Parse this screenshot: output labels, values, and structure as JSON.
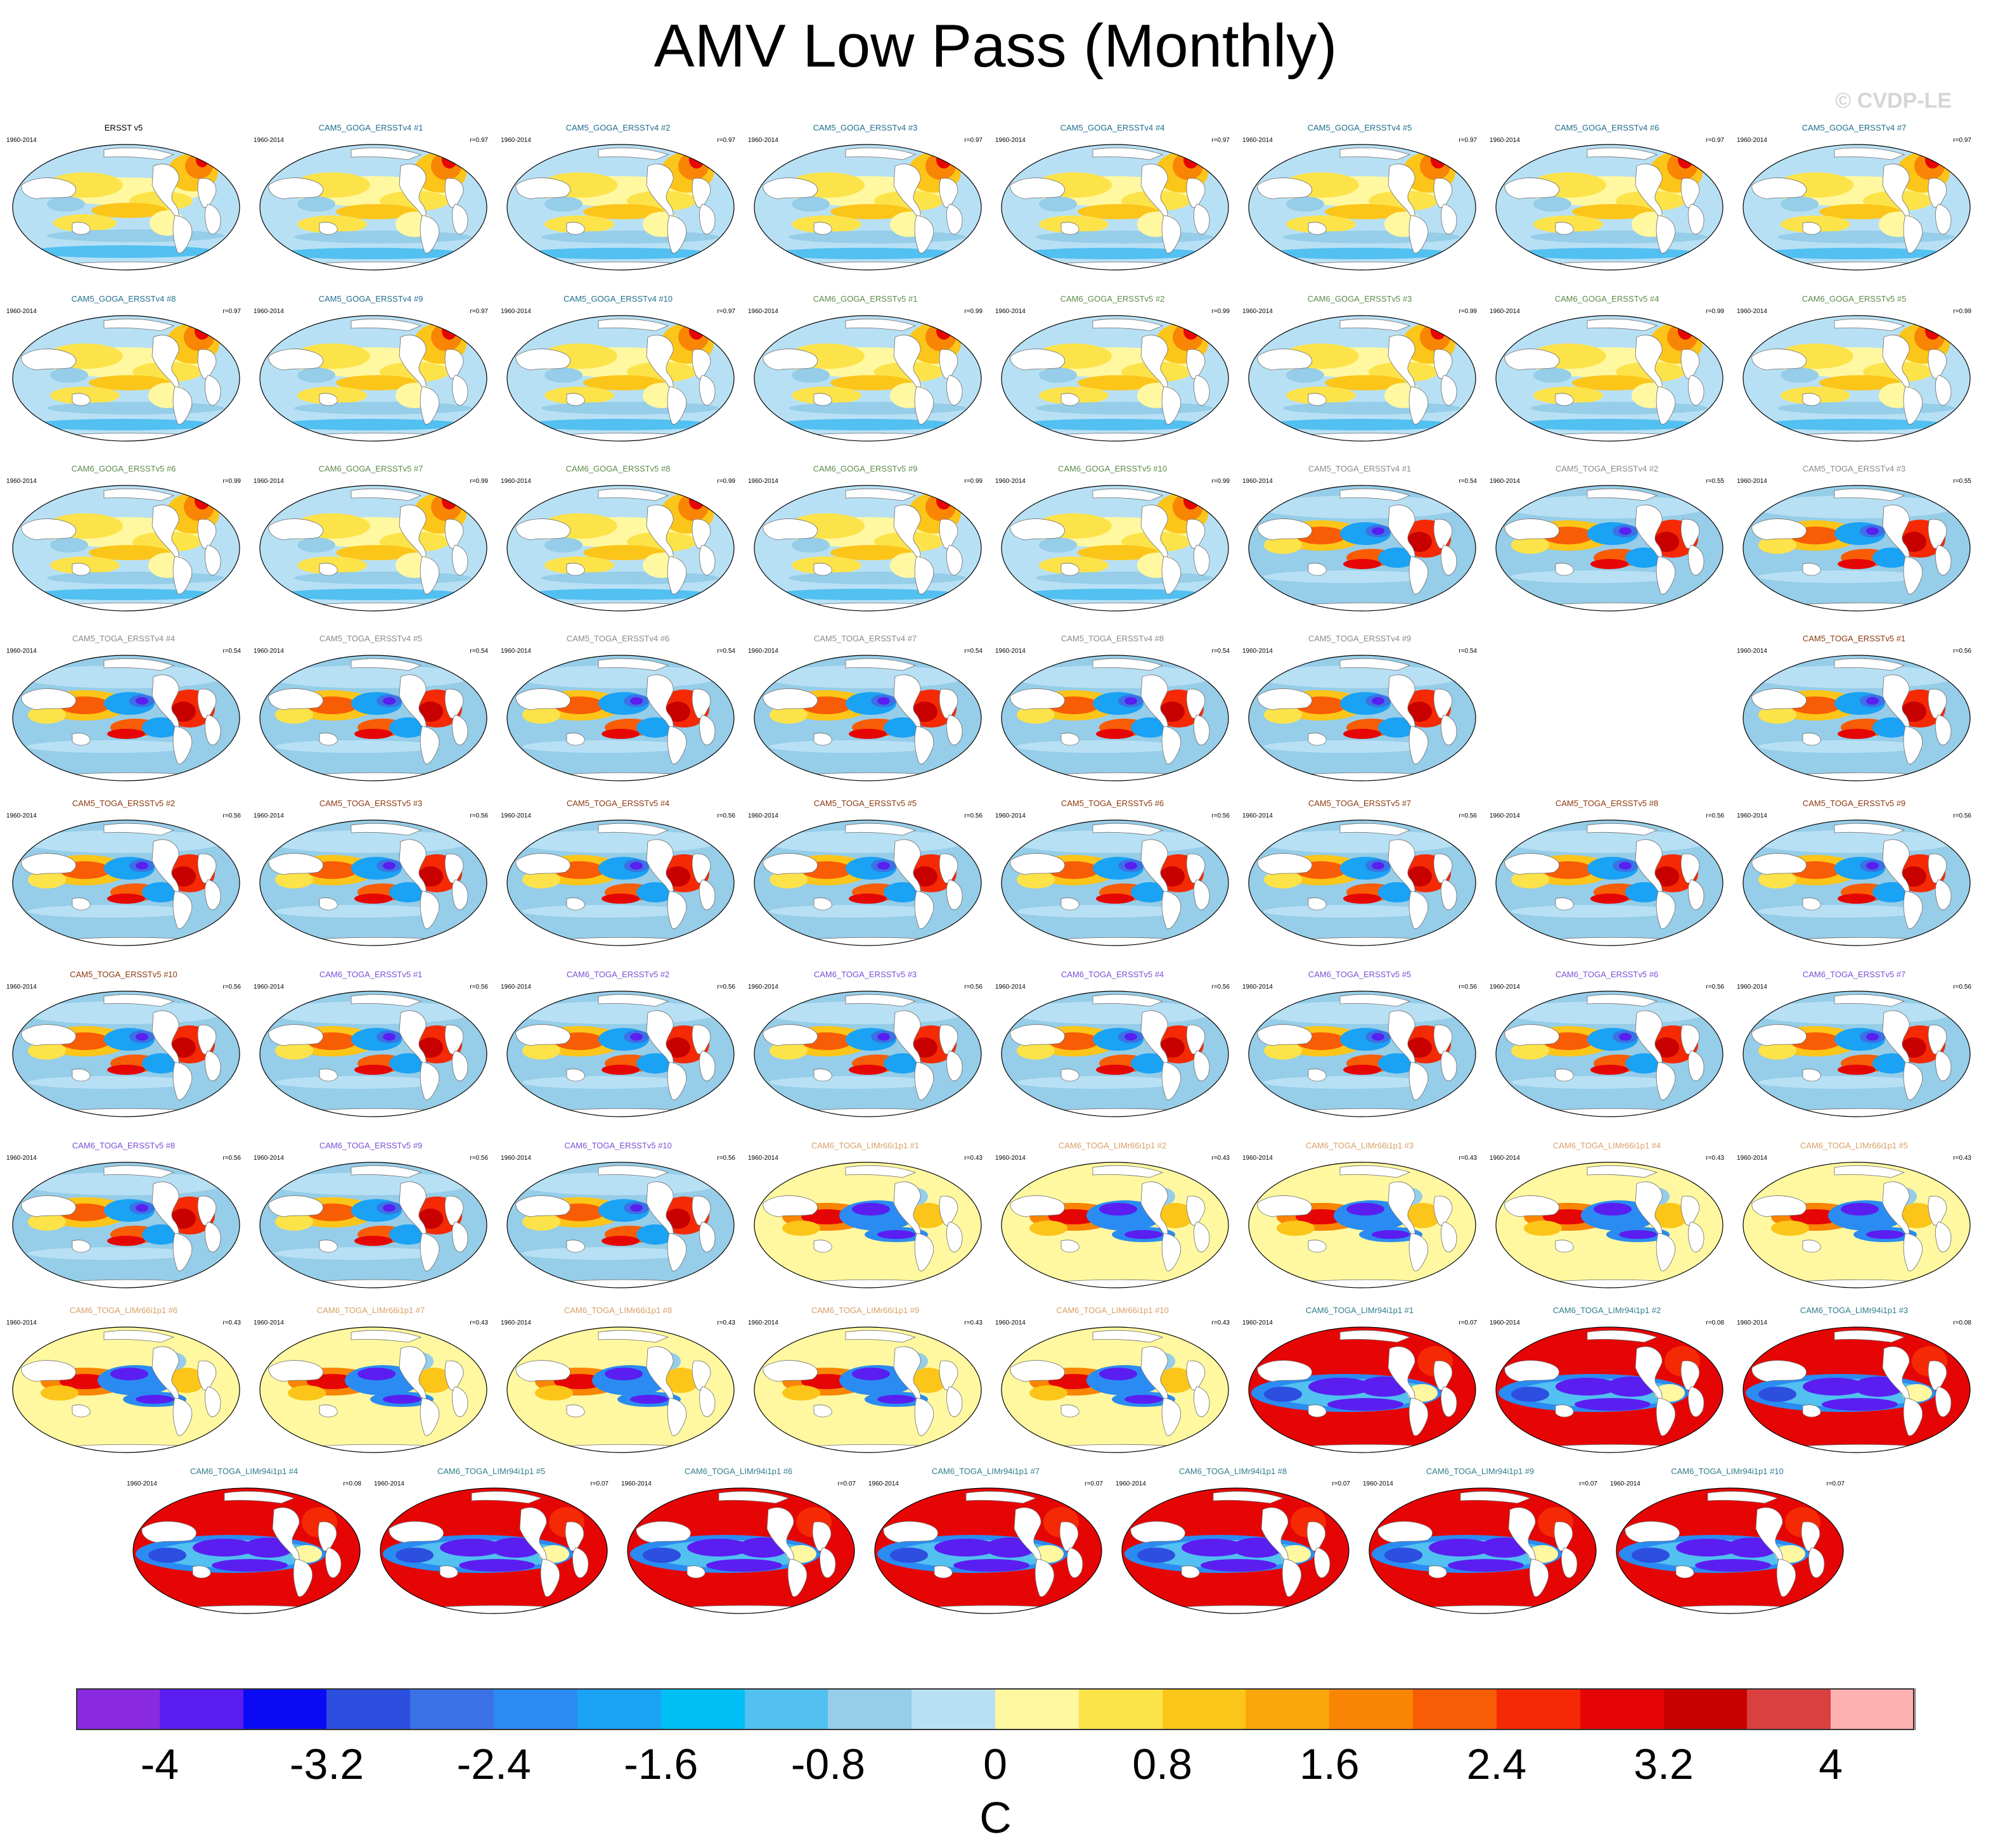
{
  "title": "AMV Low Pass (Monthly)",
  "copyright": "© CVDP-LE",
  "chart_data": {
    "type": "heatmap",
    "description_units": "C",
    "colorbar": {
      "units": "C",
      "levels": [
        -4.4,
        -4,
        -3.6,
        -3.2,
        -2.8,
        -2.4,
        -2,
        -1.6,
        -1.2,
        -0.8,
        -0.4,
        0,
        0.4,
        0.8,
        1.2,
        1.6,
        2,
        2.4,
        2.8,
        3.2,
        3.6,
        4,
        4.4
      ],
      "colors": [
        "#8a2be2",
        "#5a1ef0",
        "#0a0af5",
        "#2d4fe0",
        "#3a72e6",
        "#2a8cf2",
        "#1aa2f5",
        "#00bff5",
        "#52c0f0",
        "#96cde8",
        "#b8e0f5",
        "#fff8a0",
        "#fde34a",
        "#fcc519",
        "#fba60a",
        "#f98504",
        "#f85c05",
        "#f52a05",
        "#e60505",
        "#c80000",
        "#da4040",
        "#fdb0b0"
      ],
      "tick_labels": [
        "-4",
        "-3.2",
        "-2.4",
        "-1.6",
        "-0.8",
        "0",
        "0.8",
        "1.6",
        "2.4",
        "3.2",
        "4"
      ],
      "tick_values": [
        -4,
        -3.2,
        -2.4,
        -1.6,
        -0.8,
        0,
        0.8,
        1.6,
        2.4,
        3.2,
        4
      ]
    },
    "panels": [
      {
        "title": "ERSST v5",
        "years": "1960-2014",
        "r": "",
        "pattern": "obs",
        "title_color": "#000000"
      },
      {
        "title": "CAM5_GOGA_ERSSTv4 #1",
        "years": "1960-2014",
        "r": "r=0.97",
        "pattern": "goga",
        "title_color": "#1f6e8c"
      },
      {
        "title": "CAM5_GOGA_ERSSTv4 #2",
        "years": "1960-2014",
        "r": "r=0.97",
        "pattern": "goga",
        "title_color": "#1f6e8c"
      },
      {
        "title": "CAM5_GOGA_ERSSTv4 #3",
        "years": "1960-2014",
        "r": "r=0.97",
        "pattern": "goga",
        "title_color": "#1f6e8c"
      },
      {
        "title": "CAM5_GOGA_ERSSTv4 #4",
        "years": "1960-2014",
        "r": "r=0.97",
        "pattern": "goga",
        "title_color": "#1f6e8c"
      },
      {
        "title": "CAM5_GOGA_ERSSTv4 #5",
        "years": "1960-2014",
        "r": "r=0.97",
        "pattern": "goga",
        "title_color": "#1f6e8c"
      },
      {
        "title": "CAM5_GOGA_ERSSTv4 #6",
        "years": "1960-2014",
        "r": "r=0.97",
        "pattern": "goga",
        "title_color": "#1f6e8c"
      },
      {
        "title": "CAM5_GOGA_ERSSTv4 #7",
        "years": "1960-2014",
        "r": "r=0.97",
        "pattern": "goga",
        "title_color": "#1f6e8c"
      },
      {
        "title": "CAM5_GOGA_ERSSTv4 #8",
        "years": "1960-2014",
        "r": "r=0.97",
        "pattern": "goga",
        "title_color": "#1f6e8c"
      },
      {
        "title": "CAM5_GOGA_ERSSTv4 #9",
        "years": "1960-2014",
        "r": "r=0.97",
        "pattern": "goga",
        "title_color": "#1f6e8c"
      },
      {
        "title": "CAM5_GOGA_ERSSTv4 #10",
        "years": "1960-2014",
        "r": "r=0.97",
        "pattern": "goga",
        "title_color": "#1f6e8c"
      },
      {
        "title": "CAM6_GOGA_ERSSTv5 #1",
        "years": "1960-2014",
        "r": "r=0.99",
        "pattern": "goga",
        "title_color": "#5e8a4a"
      },
      {
        "title": "CAM6_GOGA_ERSSTv5 #2",
        "years": "1960-2014",
        "r": "r=0.99",
        "pattern": "goga",
        "title_color": "#5e8a4a"
      },
      {
        "title": "CAM6_GOGA_ERSSTv5 #3",
        "years": "1960-2014",
        "r": "r=0.99",
        "pattern": "goga",
        "title_color": "#5e8a4a"
      },
      {
        "title": "CAM6_GOGA_ERSSTv5 #4",
        "years": "1960-2014",
        "r": "r=0.99",
        "pattern": "goga",
        "title_color": "#5e8a4a"
      },
      {
        "title": "CAM6_GOGA_ERSSTv5 #5",
        "years": "1960-2014",
        "r": "r=0.99",
        "pattern": "goga",
        "title_color": "#5e8a4a"
      },
      {
        "title": "CAM6_GOGA_ERSSTv5 #6",
        "years": "1960-2014",
        "r": "r=0.99",
        "pattern": "goga",
        "title_color": "#5e8a4a"
      },
      {
        "title": "CAM6_GOGA_ERSSTv5 #7",
        "years": "1960-2014",
        "r": "r=0.99",
        "pattern": "goga",
        "title_color": "#5e8a4a"
      },
      {
        "title": "CAM6_GOGA_ERSSTv5 #8",
        "years": "1960-2014",
        "r": "r=0.99",
        "pattern": "goga",
        "title_color": "#5e8a4a"
      },
      {
        "title": "CAM6_GOGA_ERSSTv5 #9",
        "years": "1960-2014",
        "r": "r=0.99",
        "pattern": "goga",
        "title_color": "#5e8a4a"
      },
      {
        "title": "CAM6_GOGA_ERSSTv5 #10",
        "years": "1960-2014",
        "r": "r=0.99",
        "pattern": "goga",
        "title_color": "#5e8a4a"
      },
      {
        "title": "CAM5_TOGA_ERSSTv4 #1",
        "years": "1960-2014",
        "r": "r=0.54",
        "pattern": "toga",
        "title_color": "#8a8a8a"
      },
      {
        "title": "CAM5_TOGA_ERSSTv4 #2",
        "years": "1960-2014",
        "r": "r=0.55",
        "pattern": "toga",
        "title_color": "#8a8a8a"
      },
      {
        "title": "CAM5_TOGA_ERSSTv4 #3",
        "years": "1960-2014",
        "r": "r=0.55",
        "pattern": "toga",
        "title_color": "#8a8a8a"
      },
      {
        "title": "CAM5_TOGA_ERSSTv4 #4",
        "years": "1960-2014",
        "r": "r=0.54",
        "pattern": "toga",
        "title_color": "#8a8a8a"
      },
      {
        "title": "CAM5_TOGA_ERSSTv4 #5",
        "years": "1960-2014",
        "r": "r=0.54",
        "pattern": "toga",
        "title_color": "#8a8a8a"
      },
      {
        "title": "CAM5_TOGA_ERSSTv4 #6",
        "years": "1960-2014",
        "r": "r=0.54",
        "pattern": "toga",
        "title_color": "#8a8a8a"
      },
      {
        "title": "CAM5_TOGA_ERSSTv4 #7",
        "years": "1960-2014",
        "r": "r=0.54",
        "pattern": "toga",
        "title_color": "#8a8a8a"
      },
      {
        "title": "CAM5_TOGA_ERSSTv4 #8",
        "years": "1960-2014",
        "r": "r=0.54",
        "pattern": "toga",
        "title_color": "#8a8a8a"
      },
      {
        "title": "CAM5_TOGA_ERSSTv4 #9",
        "years": "1960-2014",
        "r": "r=0.54",
        "pattern": "toga",
        "title_color": "#8a8a8a"
      },
      {
        "title": "CAM5_TOGA_ERSSTv5 #1",
        "years": "1960-2014",
        "r": "r=0.56",
        "pattern": "toga",
        "title_color": "#8b3a0f"
      },
      {
        "title": "CAM5_TOGA_ERSSTv5 #2",
        "years": "1960-2014",
        "r": "r=0.56",
        "pattern": "toga",
        "title_color": "#8b3a0f"
      },
      {
        "title": "CAM5_TOGA_ERSSTv5 #3",
        "years": "1960-2014",
        "r": "r=0.56",
        "pattern": "toga",
        "title_color": "#8b3a0f"
      },
      {
        "title": "CAM5_TOGA_ERSSTv5 #4",
        "years": "1960-2014",
        "r": "r=0.56",
        "pattern": "toga",
        "title_color": "#8b3a0f"
      },
      {
        "title": "CAM5_TOGA_ERSSTv5 #5",
        "years": "1960-2014",
        "r": "r=0.56",
        "pattern": "toga",
        "title_color": "#8b3a0f"
      },
      {
        "title": "CAM5_TOGA_ERSSTv5 #6",
        "years": "1960-2014",
        "r": "r=0.56",
        "pattern": "toga",
        "title_color": "#8b3a0f"
      },
      {
        "title": "CAM5_TOGA_ERSSTv5 #7",
        "years": "1960-2014",
        "r": "r=0.56",
        "pattern": "toga",
        "title_color": "#8b3a0f"
      },
      {
        "title": "CAM5_TOGA_ERSSTv5 #8",
        "years": "1960-2014",
        "r": "r=0.56",
        "pattern": "toga",
        "title_color": "#8b3a0f"
      },
      {
        "title": "CAM5_TOGA_ERSSTv5 #9",
        "years": "1960-2014",
        "r": "r=0.56",
        "pattern": "toga",
        "title_color": "#8b3a0f"
      },
      {
        "title": "CAM5_TOGA_ERSSTv5 #10",
        "years": "1960-2014",
        "r": "r=0.56",
        "pattern": "toga",
        "title_color": "#8b3a0f"
      },
      {
        "title": "CAM6_TOGA_ERSSTv5 #1",
        "years": "1960-2014",
        "r": "r=0.56",
        "pattern": "toga",
        "title_color": "#7b4fd6"
      },
      {
        "title": "CAM6_TOGA_ERSSTv5 #2",
        "years": "1960-2014",
        "r": "r=0.56",
        "pattern": "toga",
        "title_color": "#7b4fd6"
      },
      {
        "title": "CAM6_TOGA_ERSSTv5 #3",
        "years": "1960-2014",
        "r": "r=0.56",
        "pattern": "toga",
        "title_color": "#7b4fd6"
      },
      {
        "title": "CAM6_TOGA_ERSSTv5 #4",
        "years": "1960-2014",
        "r": "r=0.56",
        "pattern": "toga",
        "title_color": "#7b4fd6"
      },
      {
        "title": "CAM6_TOGA_ERSSTv5 #5",
        "years": "1960-2014",
        "r": "r=0.56",
        "pattern": "toga",
        "title_color": "#7b4fd6"
      },
      {
        "title": "CAM6_TOGA_ERSSTv5 #6",
        "years": "1960-2014",
        "r": "r=0.56",
        "pattern": "toga",
        "title_color": "#7b4fd6"
      },
      {
        "title": "CAM6_TOGA_ERSSTv5 #7",
        "years": "1960-2014",
        "r": "r=0.56",
        "pattern": "toga",
        "title_color": "#7b4fd6"
      },
      {
        "title": "CAM6_TOGA_ERSSTv5 #8",
        "years": "1960-2014",
        "r": "r=0.56",
        "pattern": "toga",
        "title_color": "#7b4fd6"
      },
      {
        "title": "CAM6_TOGA_ERSSTv5 #9",
        "years": "1960-2014",
        "r": "r=0.56",
        "pattern": "toga",
        "title_color": "#7b4fd6"
      },
      {
        "title": "CAM6_TOGA_ERSSTv5 #10",
        "years": "1960-2014",
        "r": "r=0.56",
        "pattern": "toga",
        "title_color": "#7b4fd6"
      },
      {
        "title": "CAM6_TOGA_LIMr66i1p1 #1",
        "years": "1960-2014",
        "r": "r=0.43",
        "pattern": "lim66",
        "title_color": "#d9a066"
      },
      {
        "title": "CAM6_TOGA_LIMr66i1p1 #2",
        "years": "1960-2014",
        "r": "r=0.43",
        "pattern": "lim66",
        "title_color": "#d9a066"
      },
      {
        "title": "CAM6_TOGA_LIMr66i1p1 #3",
        "years": "1960-2014",
        "r": "r=0.43",
        "pattern": "lim66",
        "title_color": "#d9a066"
      },
      {
        "title": "CAM6_TOGA_LIMr66i1p1 #4",
        "years": "1960-2014",
        "r": "r=0.43",
        "pattern": "lim66",
        "title_color": "#d9a066"
      },
      {
        "title": "CAM6_TOGA_LIMr66i1p1 #5",
        "years": "1960-2014",
        "r": "r=0.43",
        "pattern": "lim66",
        "title_color": "#d9a066"
      },
      {
        "title": "CAM6_TOGA_LIMr66i1p1 #6",
        "years": "1960-2014",
        "r": "r=0.43",
        "pattern": "lim66",
        "title_color": "#d9a066"
      },
      {
        "title": "CAM6_TOGA_LIMr66i1p1 #7",
        "years": "1960-2014",
        "r": "r=0.43",
        "pattern": "lim66",
        "title_color": "#d9a066"
      },
      {
        "title": "CAM6_TOGA_LIMr66i1p1 #8",
        "years": "1960-2014",
        "r": "r=0.43",
        "pattern": "lim66",
        "title_color": "#d9a066"
      },
      {
        "title": "CAM6_TOGA_LIMr66i1p1 #9",
        "years": "1960-2014",
        "r": "r=0.43",
        "pattern": "lim66",
        "title_color": "#d9a066"
      },
      {
        "title": "CAM6_TOGA_LIMr66i1p1 #10",
        "years": "1960-2014",
        "r": "r=0.43",
        "pattern": "lim66",
        "title_color": "#d9a066"
      },
      {
        "title": "CAM6_TOGA_LIMr94i1p1 #1",
        "years": "1960-2014",
        "r": "r=0.07",
        "pattern": "lim94",
        "title_color": "#2f7d8c"
      },
      {
        "title": "CAM6_TOGA_LIMr94i1p1 #2",
        "years": "1960-2014",
        "r": "r=0.08",
        "pattern": "lim94",
        "title_color": "#2f7d8c"
      },
      {
        "title": "CAM6_TOGA_LIMr94i1p1 #3",
        "years": "1960-2014",
        "r": "r=0.08",
        "pattern": "lim94",
        "title_color": "#2f7d8c"
      },
      {
        "title": "CAM6_TOGA_LIMr94i1p1 #4",
        "years": "1960-2014",
        "r": "r=0.08",
        "pattern": "lim94",
        "title_color": "#2f7d8c"
      },
      {
        "title": "CAM6_TOGA_LIMr94i1p1 #5",
        "years": "1960-2014",
        "r": "r=0.07",
        "pattern": "lim94",
        "title_color": "#2f7d8c"
      },
      {
        "title": "CAM6_TOGA_LIMr94i1p1 #6",
        "years": "1960-2014",
        "r": "r=0.07",
        "pattern": "lim94",
        "title_color": "#2f7d8c"
      },
      {
        "title": "CAM6_TOGA_LIMr94i1p1 #7",
        "years": "1960-2014",
        "r": "r=0.07",
        "pattern": "lim94",
        "title_color": "#2f7d8c"
      },
      {
        "title": "CAM6_TOGA_LIMr94i1p1 #8",
        "years": "1960-2014",
        "r": "r=0.07",
        "pattern": "lim94",
        "title_color": "#2f7d8c"
      },
      {
        "title": "CAM6_TOGA_LIMr94i1p1 #9",
        "years": "1960-2014",
        "r": "r=0.07",
        "pattern": "lim94",
        "title_color": "#2f7d8c"
      },
      {
        "title": "CAM6_TOGA_LIMr94i1p1 #10",
        "years": "1960-2014",
        "r": "r=0.07",
        "pattern": "lim94",
        "title_color": "#2f7d8c"
      }
    ]
  }
}
